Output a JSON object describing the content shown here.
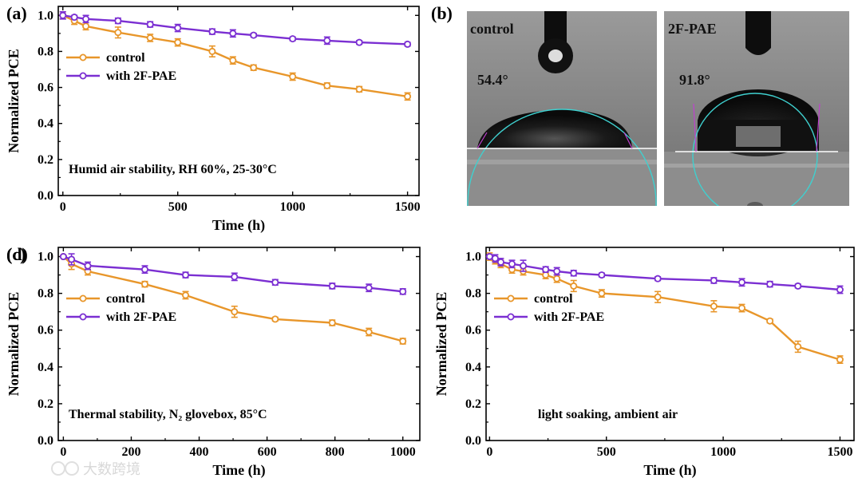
{
  "colors": {
    "control": "#e8962a",
    "with_2f_pae": "#7b2fd2",
    "fit_circle": "#3fd0cf",
    "baseline": "#ffffff"
  },
  "panel_b": {
    "label": "(b)",
    "left": {
      "title": "control",
      "angle": "54.4°"
    },
    "right": {
      "title": "2F-PAE",
      "angle": "91.8°"
    }
  },
  "watermark": {
    "text": "大数跨境",
    "icon": "logo-icon"
  },
  "chart_data": [
    {
      "id": "a",
      "panel_label": "(a)",
      "type": "line",
      "xlabel": "Time (h)",
      "ylabel": "Normalized PCE",
      "xlim": [
        -20,
        1550
      ],
      "ylim": [
        0,
        1.05
      ],
      "xticks": [
        0,
        500,
        1000,
        1500
      ],
      "yticks": [
        0.0,
        0.2,
        0.4,
        0.6,
        0.8,
        1.0
      ],
      "ytick_labels": [
        "0.0",
        "0.2",
        "0.4",
        "0.6",
        "0.8",
        "1.0"
      ],
      "xtick_labels": [
        "0",
        "500",
        "1000",
        "1500"
      ],
      "legend": [
        "control",
        "with 2F-PAE"
      ],
      "annotation": "Humid air stability, RH 60%, 25-30°C",
      "series": [
        {
          "name": "control",
          "x": [
            0,
            50,
            100,
            240,
            380,
            500,
            650,
            740,
            830,
            1000,
            1150,
            1290,
            1500
          ],
          "y": [
            1.0,
            0.97,
            0.94,
            0.905,
            0.875,
            0.85,
            0.8,
            0.75,
            0.71,
            0.66,
            0.61,
            0.59,
            0.55
          ],
          "err": [
            0.02,
            0.02,
            0.02,
            0.03,
            0.02,
            0.02,
            0.03,
            0.02,
            0.015,
            0.02,
            0.015,
            0.015,
            0.02
          ]
        },
        {
          "name": "with 2F-PAE",
          "x": [
            0,
            50,
            100,
            240,
            380,
            500,
            650,
            740,
            830,
            1000,
            1150,
            1290,
            1500
          ],
          "y": [
            1.0,
            0.99,
            0.98,
            0.97,
            0.95,
            0.93,
            0.91,
            0.9,
            0.89,
            0.87,
            0.86,
            0.85,
            0.84
          ],
          "err": [
            0.02,
            0.01,
            0.02,
            0.015,
            0.015,
            0.02,
            0.015,
            0.02,
            0.01,
            0.01,
            0.02,
            0.01,
            0.01
          ]
        }
      ]
    },
    {
      "id": "c",
      "panel_label": "(c)",
      "type": "line",
      "xlabel": "Time (h)",
      "ylabel": "Normalized PCE",
      "xlim": [
        -15,
        1050
      ],
      "ylim": [
        0,
        1.05
      ],
      "xticks": [
        0,
        200,
        400,
        600,
        800,
        1000
      ],
      "yticks": [
        0.0,
        0.2,
        0.4,
        0.6,
        0.8,
        1.0
      ],
      "ytick_labels": [
        "0.0",
        "0.2",
        "0.4",
        "0.6",
        "0.8",
        "1.0"
      ],
      "xtick_labels": [
        "0",
        "200",
        "400",
        "600",
        "800",
        "1000"
      ],
      "legend": [
        "control",
        "with 2F-PAE"
      ],
      "annotation": "Thermal stability, N₂ glovebox, 85°C",
      "series": [
        {
          "name": "control",
          "x": [
            0,
            24,
            72,
            240,
            360,
            504,
            624,
            792,
            900,
            1000
          ],
          "y": [
            1.0,
            0.96,
            0.92,
            0.85,
            0.79,
            0.7,
            0.66,
            0.64,
            0.59,
            0.54
          ],
          "err": [
            0.0,
            0.03,
            0.02,
            0.015,
            0.02,
            0.03,
            0.01,
            0.015,
            0.02,
            0.015
          ]
        },
        {
          "name": "with 2F-PAE",
          "x": [
            0,
            24,
            72,
            240,
            360,
            504,
            624,
            792,
            900,
            1000
          ],
          "y": [
            1.0,
            0.985,
            0.95,
            0.93,
            0.9,
            0.89,
            0.86,
            0.84,
            0.83,
            0.81
          ],
          "err": [
            0.0,
            0.03,
            0.02,
            0.02,
            0.015,
            0.02,
            0.015,
            0.015,
            0.02,
            0.015
          ]
        }
      ]
    },
    {
      "id": "d",
      "panel_label": "(d)",
      "type": "line",
      "xlabel": "Time (h)",
      "ylabel": "Normalized PCE",
      "xlim": [
        -15,
        1560
      ],
      "ylim": [
        0,
        1.05
      ],
      "xticks": [
        0,
        500,
        1000,
        1500
      ],
      "yticks": [
        0.0,
        0.2,
        0.4,
        0.6,
        0.8,
        1.0
      ],
      "ytick_labels": [
        "0.0",
        "0.2",
        "0.4",
        "0.6",
        "0.8",
        "1.0"
      ],
      "xtick_labels": [
        "0",
        "500",
        "1000",
        "1500"
      ],
      "legend": [
        "control",
        "with 2F-PAE"
      ],
      "annotation": "light soaking, ambient air",
      "series": [
        {
          "name": "control",
          "x": [
            0,
            24,
            48,
            96,
            144,
            240,
            288,
            360,
            480,
            720,
            960,
            1080,
            1200,
            1320,
            1500
          ],
          "y": [
            1.0,
            0.98,
            0.96,
            0.93,
            0.92,
            0.9,
            0.88,
            0.84,
            0.8,
            0.78,
            0.73,
            0.72,
            0.65,
            0.51,
            0.44
          ],
          "err": [
            0.02,
            0.02,
            0.02,
            0.02,
            0.02,
            0.02,
            0.02,
            0.03,
            0.02,
            0.03,
            0.03,
            0.02,
            0.01,
            0.03,
            0.02
          ]
        },
        {
          "name": "with 2F-PAE",
          "x": [
            0,
            24,
            48,
            96,
            144,
            240,
            288,
            360,
            480,
            720,
            960,
            1080,
            1200,
            1320,
            1500
          ],
          "y": [
            1.0,
            0.99,
            0.97,
            0.96,
            0.95,
            0.93,
            0.92,
            0.91,
            0.9,
            0.88,
            0.87,
            0.86,
            0.85,
            0.84,
            0.82
          ],
          "err": [
            0.01,
            0.02,
            0.02,
            0.02,
            0.03,
            0.015,
            0.02,
            0.015,
            0.01,
            0.01,
            0.015,
            0.02,
            0.015,
            0.01,
            0.02
          ]
        }
      ]
    }
  ]
}
